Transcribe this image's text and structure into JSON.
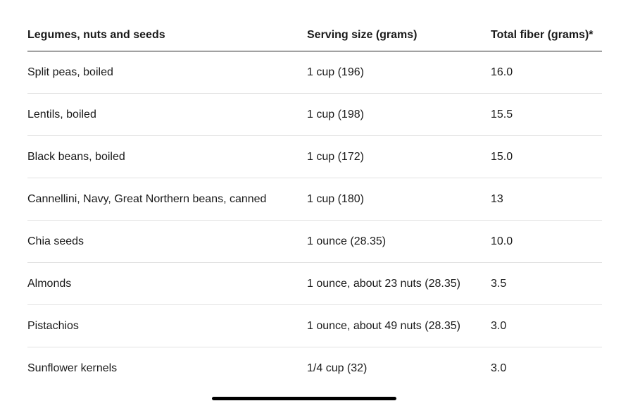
{
  "table": {
    "headers": [
      "Legumes, nuts and seeds",
      "Serving size (grams)",
      "Total fiber (grams)*"
    ],
    "rows": [
      [
        "Split peas, boiled",
        "1 cup (196)",
        "16.0"
      ],
      [
        "Lentils, boiled",
        "1 cup (198)",
        "15.5"
      ],
      [
        "Black beans, boiled",
        "1 cup (172)",
        "15.0"
      ],
      [
        "Cannellini, Navy, Great Northern beans, canned",
        "1 cup (180)",
        "13"
      ],
      [
        "Chia seeds",
        "1 ounce (28.35)",
        "10.0"
      ],
      [
        "Almonds",
        "1 ounce, about 23 nuts (28.35)",
        "3.5"
      ],
      [
        "Pistachios",
        "1 ounce, about 49 nuts (28.35)",
        "3.0"
      ],
      [
        "Sunflower kernels",
        "1/4 cup (32)",
        "3.0"
      ]
    ]
  }
}
